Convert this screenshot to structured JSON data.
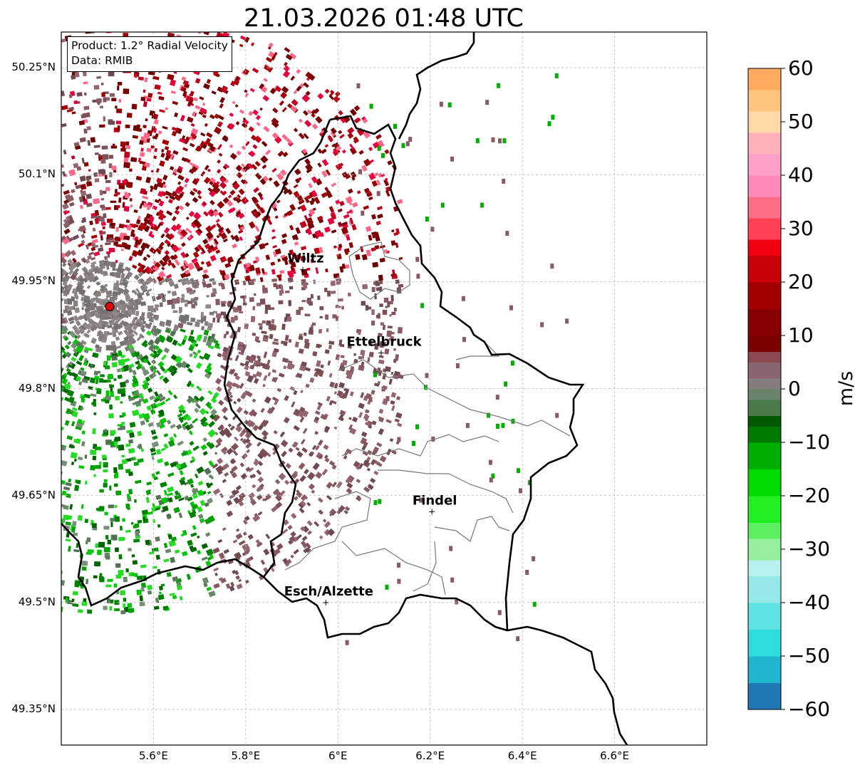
{
  "title": "21.03.2026 01:48 UTC",
  "info_box": {
    "line1": "Product: 1.2° Radial Velocity",
    "line2": "Data: RMIB"
  },
  "map": {
    "lon_range": [
      5.4,
      6.8
    ],
    "lat_range": [
      49.3,
      50.3
    ],
    "lon_ticks": [
      {
        "value": 5.6,
        "label": "5.6°E"
      },
      {
        "value": 5.8,
        "label": "5.8°E"
      },
      {
        "value": 6.0,
        "label": "6°E"
      },
      {
        "value": 6.2,
        "label": "6.2°E"
      },
      {
        "value": 6.4,
        "label": "6.4°E"
      },
      {
        "value": 6.6,
        "label": "6.6°E"
      }
    ],
    "lat_ticks": [
      {
        "value": 50.25,
        "label": "50.25°N"
      },
      {
        "value": 50.1,
        "label": "50.1°N"
      },
      {
        "value": 49.95,
        "label": "49.95°N"
      },
      {
        "value": 49.8,
        "label": "49.8°N"
      },
      {
        "value": 49.65,
        "label": "49.65°N"
      },
      {
        "value": 49.5,
        "label": "49.5°N"
      },
      {
        "value": 49.35,
        "label": "49.35°N"
      }
    ],
    "gridlines": true,
    "radar_site": {
      "lon": 5.505,
      "lat": 49.915,
      "color": "#e50000"
    },
    "places": [
      {
        "name": "Wiltz",
        "lon": 5.93,
        "lat": 49.967
      },
      {
        "name": "Ettelbruck",
        "lon": 6.1,
        "lat": 49.85
      },
      {
        "name": "Findel",
        "lon": 6.21,
        "lat": 49.627
      },
      {
        "name": "Esch/Alzette",
        "lon": 5.98,
        "lat": 49.5
      }
    ]
  },
  "colorbar": {
    "label": "m/s",
    "range": [
      -60,
      60
    ],
    "ticks": [
      {
        "value": 60,
        "label": "60"
      },
      {
        "value": 50,
        "label": "50"
      },
      {
        "value": 40,
        "label": "40"
      },
      {
        "value": 30,
        "label": "30"
      },
      {
        "value": 20,
        "label": "20"
      },
      {
        "value": 10,
        "label": "10"
      },
      {
        "value": 0,
        "label": "0"
      },
      {
        "value": -10,
        "label": "−10"
      },
      {
        "value": -20,
        "label": "−20"
      },
      {
        "value": -30,
        "label": "−30"
      },
      {
        "value": -40,
        "label": "−40"
      },
      {
        "value": -50,
        "label": "−50"
      },
      {
        "value": -60,
        "label": "−60"
      }
    ]
  }
}
